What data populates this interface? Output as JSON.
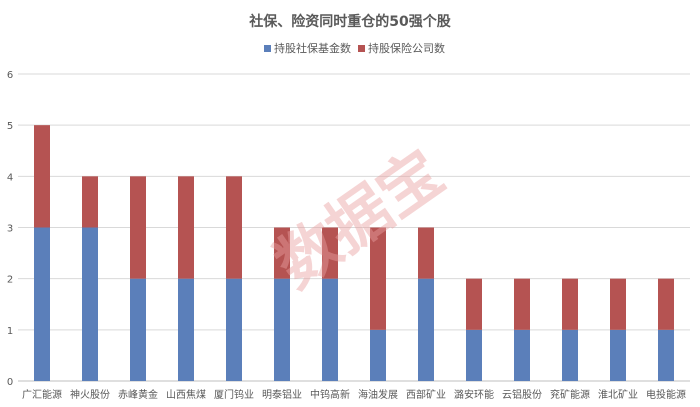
{
  "chart_data": {
    "type": "bar",
    "stacked": true,
    "title": "社保、险资同时重仓的50强个股",
    "categories": [
      "广汇能源",
      "神火股份",
      "赤峰黄金",
      "山西焦煤",
      "厦门钨业",
      "明泰铝业",
      "中钨高新",
      "海油发展",
      "西部矿业",
      "潞安环能",
      "云铝股份",
      "兖矿能源",
      "淮北矿业",
      "电投能源"
    ],
    "series": [
      {
        "name": "持股社保基金数",
        "color": "#5b7fba",
        "values": [
          3,
          3,
          2,
          2,
          2,
          2,
          2,
          1,
          2,
          1,
          1,
          1,
          1,
          1
        ]
      },
      {
        "name": "持股保险公司数",
        "color": "#b55352",
        "values": [
          2,
          1,
          2,
          2,
          2,
          1,
          1,
          2,
          1,
          1,
          1,
          1,
          1,
          1
        ]
      }
    ],
    "ylim": [
      0,
      6
    ],
    "yticks": [
      0,
      1,
      2,
      3,
      4,
      5,
      6
    ],
    "grid": true,
    "legend_position": "top"
  },
  "watermark": "数据宝"
}
